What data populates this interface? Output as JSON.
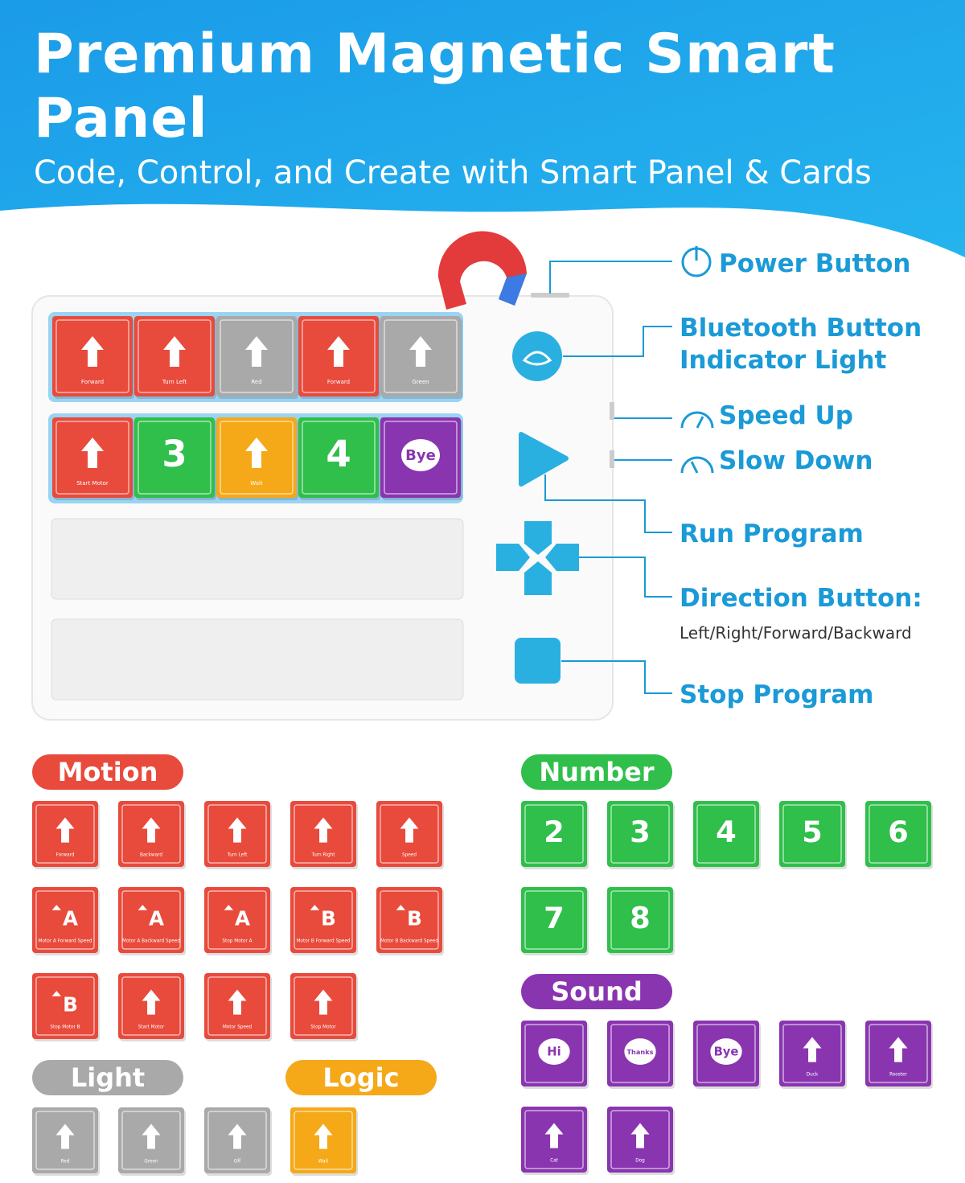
{
  "header": {
    "title": "Premium Magnetic Smart Panel",
    "subtitle": "Code, Control, and Create with Smart Panel & Cards"
  },
  "panel": {
    "row1": [
      {
        "label": "Forward"
      },
      {
        "label": "Turn Left"
      },
      {
        "label": "Red"
      },
      {
        "label": "Forward"
      },
      {
        "label": "Green"
      }
    ],
    "row2": [
      {
        "label": "Start Motor"
      },
      {
        "text": "3"
      },
      {
        "label": "Wait"
      },
      {
        "text": "4"
      },
      {
        "text": "Bye"
      }
    ]
  },
  "callouts": {
    "power": "Power Button",
    "bluetooth": "Bluetooth Button",
    "indicator": "Indicator Light",
    "speed_up": "Speed Up",
    "slow_down": "Slow Down",
    "run": "Run Program",
    "direction": "Direction Button:",
    "direction_note": "Left/Right/Forward/Backward",
    "stop": "Stop Program"
  },
  "groups": {
    "motion": {
      "title": "Motion",
      "cards": [
        {
          "label": "Forward"
        },
        {
          "label": "Backward"
        },
        {
          "label": "Turn Left"
        },
        {
          "label": "Turn Right"
        },
        {
          "label": "Speed"
        },
        {
          "text": "A",
          "label": "Motor A Forward Speed"
        },
        {
          "text": "A",
          "label": "Motor A Backward Speed"
        },
        {
          "text": "A",
          "label": "Stop Motor A"
        },
        {
          "text": "B",
          "label": "Motor B Forward Speed"
        },
        {
          "text": "B",
          "label": "Motor B Backward Speed"
        },
        {
          "text": "B",
          "label": "Stop Motor B"
        },
        {
          "label": "Start Motor"
        },
        {
          "label": "Motor Speed"
        },
        {
          "label": "Stop Motor"
        }
      ]
    },
    "number": {
      "title": "Number",
      "cards": [
        {
          "text": "2"
        },
        {
          "text": "3"
        },
        {
          "text": "4"
        },
        {
          "text": "5"
        },
        {
          "text": "6"
        },
        {
          "text": "7"
        },
        {
          "text": "8"
        }
      ]
    },
    "sound": {
      "title": "Sound",
      "cards": [
        {
          "text": "Hi"
        },
        {
          "text": "Thanks"
        },
        {
          "text": "Bye"
        },
        {
          "label": "Duck"
        },
        {
          "label": "Rooster"
        },
        {
          "label": "Cat"
        },
        {
          "label": "Dog"
        }
      ]
    },
    "light": {
      "title": "Light",
      "cards": [
        {
          "label": "Red"
        },
        {
          "label": "Green"
        },
        {
          "label": "Off"
        }
      ]
    },
    "logic": {
      "title": "Logic",
      "cards": [
        {
          "label": "Wait"
        }
      ]
    }
  }
}
